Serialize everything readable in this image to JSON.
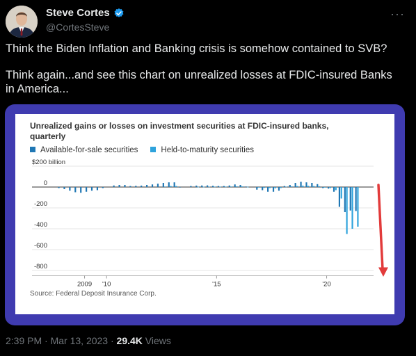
{
  "author": {
    "name": "Steve Cortes",
    "handle": "@CortesSteve"
  },
  "more_icon": "ellipsis-icon",
  "tweet": {
    "line1": "Think the Biden Inflation and Banking crisis is somehow contained to SVB?",
    "line2": "Think again...and see this chart on unrealized losses at FDIC-insured Banks in America..."
  },
  "footer": {
    "time": "2:39 PM",
    "sep": "·",
    "date": "Mar 13, 2023",
    "sep2": "·",
    "views_count": "29.4K",
    "views_label": "Views"
  },
  "colors": {
    "afs": "#1f77b4",
    "htm": "#2ea3dc",
    "arrow": "#e23b3b",
    "frame": "#3f3bb0"
  },
  "chart_data": {
    "type": "bar",
    "title": "Unrealized gains or losses on investment securities at FDIC-insured banks, quarterly",
    "ylabel_top": "$200 billion",
    "yticks": [
      0,
      -200,
      -400,
      -600,
      -800
    ],
    "ytick_labels": [
      "0",
      "-200",
      "-400",
      "-600",
      "-800"
    ],
    "ylim": [
      -800,
      200
    ],
    "x_tick_labels": [
      {
        "label": "2009",
        "quarter_index": 5
      },
      {
        "label": "'10",
        "quarter_index": 9
      },
      {
        "label": "'15",
        "quarter_index": 29
      },
      {
        "label": "'20",
        "quarter_index": 49
      }
    ],
    "categories_start": "2008 Q1",
    "series": [
      {
        "name": "Available-for-sale securities",
        "values": [
          -10,
          -20,
          -35,
          -50,
          -55,
          -45,
          -35,
          -30,
          -10,
          0,
          15,
          20,
          20,
          10,
          12,
          14,
          20,
          25,
          32,
          40,
          45,
          45,
          -5,
          0,
          10,
          14,
          15,
          16,
          12,
          10,
          10,
          15,
          25,
          20,
          5,
          0,
          -25,
          -30,
          -45,
          -45,
          -35,
          10,
          20,
          40,
          50,
          45,
          40,
          28,
          -10,
          -15,
          -45,
          -190,
          -240,
          -225,
          -230
        ]
      },
      {
        "name": "Held-to-maturity securities",
        "values": [
          0,
          0,
          0,
          0,
          0,
          0,
          0,
          0,
          0,
          0,
          0,
          0,
          0,
          0,
          0,
          0,
          0,
          0,
          0,
          5,
          10,
          10,
          0,
          0,
          0,
          2,
          3,
          4,
          4,
          4,
          4,
          5,
          7,
          6,
          2,
          0,
          -5,
          -8,
          -10,
          -12,
          -10,
          4,
          6,
          10,
          14,
          12,
          10,
          8,
          -5,
          -10,
          -30,
          -110,
          -450,
          -400,
          -380
        ]
      }
    ],
    "source": "Source: Federal Deposit Insurance Corp."
  }
}
